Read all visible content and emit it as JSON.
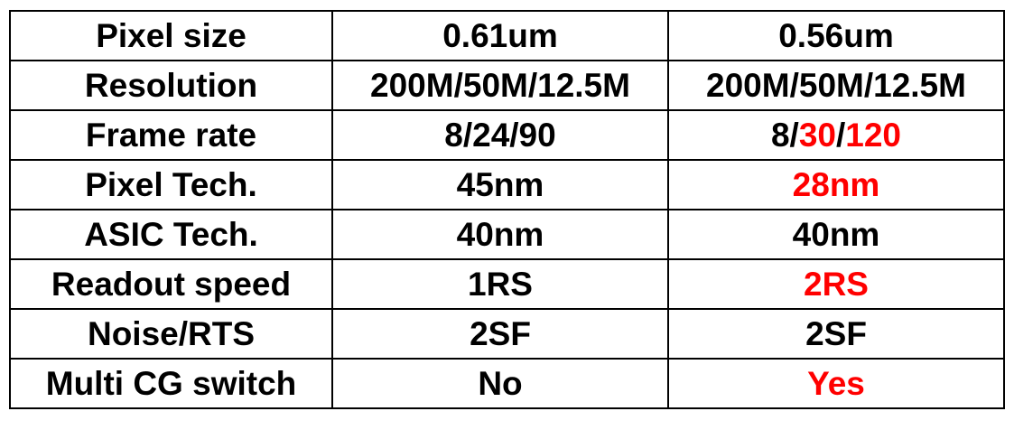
{
  "colors": {
    "text": "#000000",
    "highlight": "#ff0000",
    "border": "#000000",
    "background": "#ffffff"
  },
  "table": {
    "rows": [
      {
        "label": "Pixel size",
        "col1": [
          {
            "text": "0.61um",
            "hl": false
          }
        ],
        "col2": [
          {
            "text": "0.56um",
            "hl": false
          }
        ]
      },
      {
        "label": "Resolution",
        "col1": [
          {
            "text": "200M/50M/12.5M",
            "hl": false
          }
        ],
        "col2": [
          {
            "text": "200M/50M/12.5M",
            "hl": false
          }
        ]
      },
      {
        "label": "Frame rate",
        "col1": [
          {
            "text": "8/24/90",
            "hl": false
          }
        ],
        "col2": [
          {
            "text": "8/",
            "hl": false
          },
          {
            "text": "30",
            "hl": true
          },
          {
            "text": "/",
            "hl": false
          },
          {
            "text": "120",
            "hl": true
          }
        ]
      },
      {
        "label": "Pixel Tech.",
        "col1": [
          {
            "text": "45nm",
            "hl": false
          }
        ],
        "col2": [
          {
            "text": "28nm",
            "hl": true
          }
        ]
      },
      {
        "label": "ASIC Tech.",
        "col1": [
          {
            "text": "40nm",
            "hl": false
          }
        ],
        "col2": [
          {
            "text": "40nm",
            "hl": false
          }
        ]
      },
      {
        "label": "Readout speed",
        "col1": [
          {
            "text": "1RS",
            "hl": false
          }
        ],
        "col2": [
          {
            "text": "2RS",
            "hl": true
          }
        ]
      },
      {
        "label": "Noise/RTS",
        "col1": [
          {
            "text": "2SF",
            "hl": false
          }
        ],
        "col2": [
          {
            "text": "2SF",
            "hl": false
          }
        ]
      },
      {
        "label": "Multi CG switch",
        "col1": [
          {
            "text": "No",
            "hl": false
          }
        ],
        "col2": [
          {
            "text": "Yes",
            "hl": true
          }
        ]
      }
    ]
  }
}
